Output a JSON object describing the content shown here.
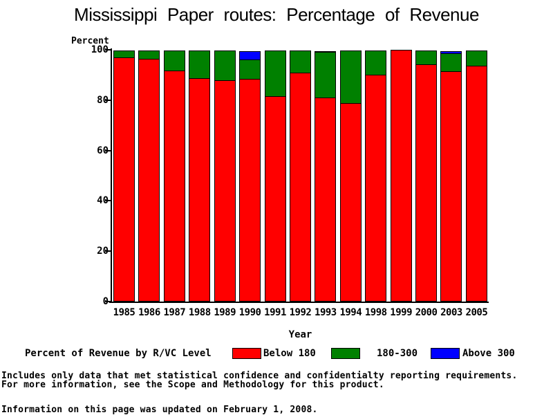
{
  "chart_data": {
    "type": "bar",
    "stacked": true,
    "title": "Mississippi Paper routes: Percentage of Revenue",
    "xlabel": "Year",
    "ylabel": "Percent",
    "ylim": [
      0,
      100
    ],
    "yticks": [
      0,
      20,
      40,
      60,
      80,
      100
    ],
    "grid": false,
    "legend_position": "bottom",
    "legend_title": "Percent of Revenue by R/VC Level",
    "categories": [
      "1985",
      "1986",
      "1987",
      "1988",
      "1989",
      "1990",
      "1991",
      "1992",
      "1993",
      "1994",
      "1998",
      "1999",
      "2000",
      "2003",
      "2005"
    ],
    "series": [
      {
        "name": "Below 180",
        "color": "#ff0000",
        "values": [
          97.0,
          96.4,
          91.8,
          88.7,
          88.0,
          88.5,
          81.6,
          91.0,
          81.0,
          78.8,
          90.1,
          100.0,
          94.2,
          91.5,
          93.7
        ]
      },
      {
        "name": "180-300",
        "color": "#008000",
        "values": [
          3.0,
          3.6,
          8.2,
          11.3,
          12.0,
          8.0,
          18.4,
          9.0,
          18.5,
          21.2,
          9.9,
          0.0,
          5.8,
          7.5,
          6.3
        ]
      },
      {
        "name": "Above 300",
        "color": "#0000ff",
        "values": [
          0.0,
          0.0,
          0.0,
          0.0,
          0.0,
          3.5,
          0.0,
          0.0,
          0.5,
          0.0,
          0.0,
          0.0,
          0.0,
          1.0,
          0.0
        ]
      }
    ]
  },
  "footnotes": {
    "line1": "Includes only data that met statistical confidence and confidentialty reporting requirements.",
    "line2": "For more information, see the Scope and Methodology for this product.",
    "updated": "Information on this page was updated on February 1, 2008."
  }
}
